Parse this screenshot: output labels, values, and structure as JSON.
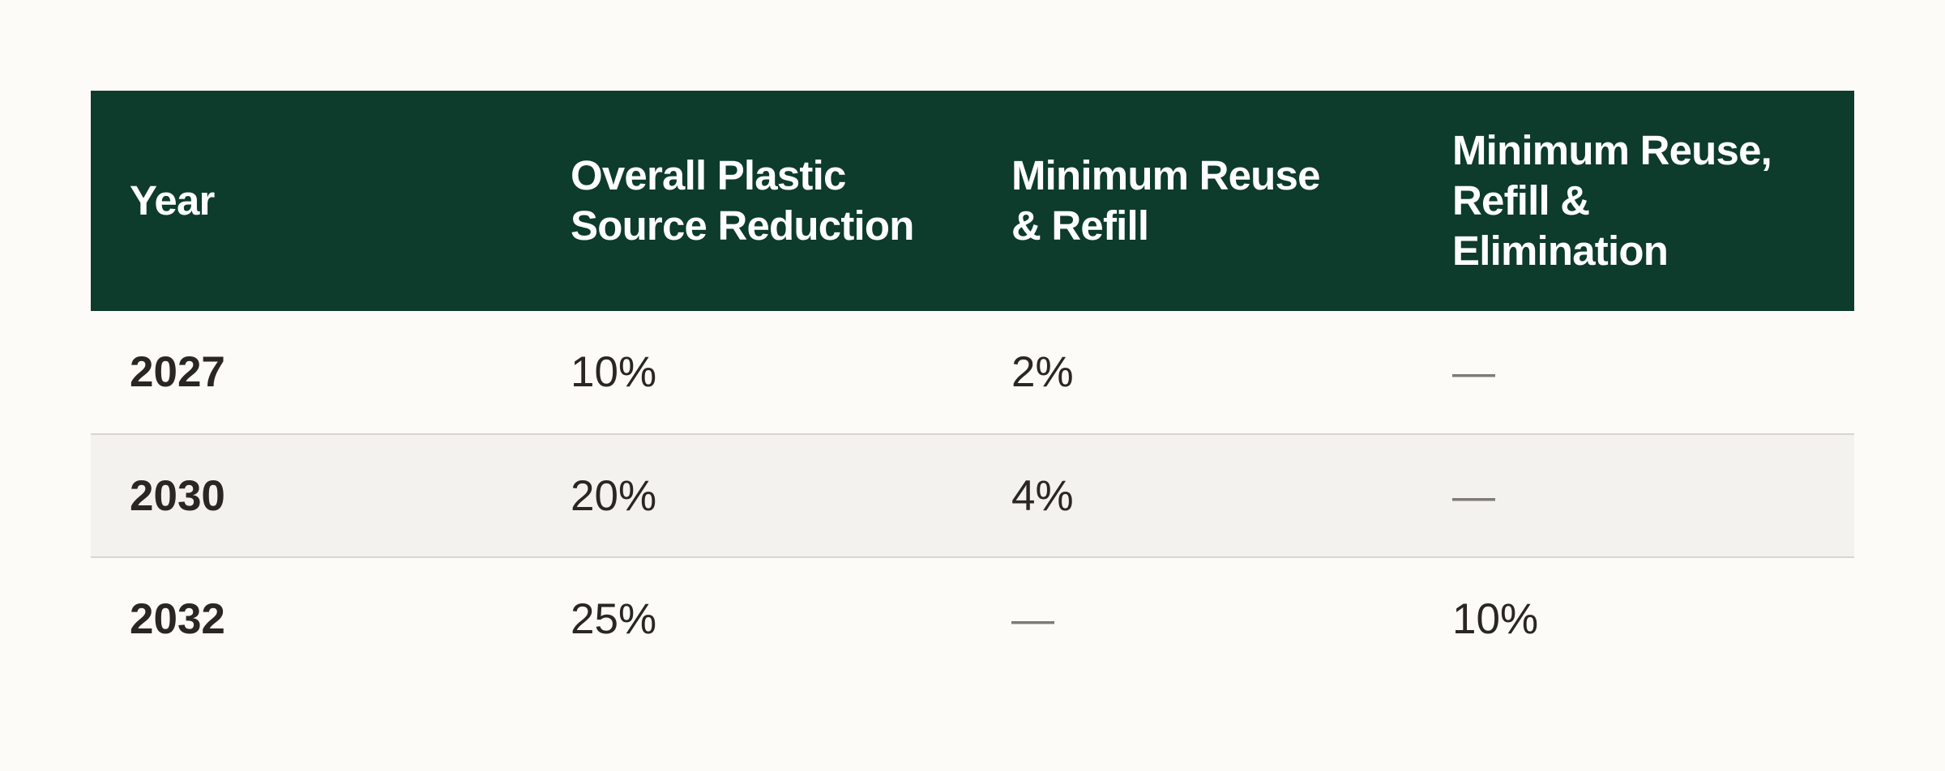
{
  "table": {
    "headers": [
      "Year",
      "Overall Plastic\nSource Reduction",
      "Minimum Reuse\n& Refill",
      "Minimum Reuse,\nRefill &\nElimination"
    ],
    "rows": [
      [
        "2027",
        "10%",
        "2%",
        "—"
      ],
      [
        "2030",
        "20%",
        "4%",
        "—"
      ],
      [
        "2032",
        "25%",
        "—",
        "10%"
      ]
    ]
  },
  "colors": {
    "header_bg": "#0d3b2c",
    "page_bg": "#fcfbf7",
    "alt_row_bg": "#f3f2ef"
  }
}
